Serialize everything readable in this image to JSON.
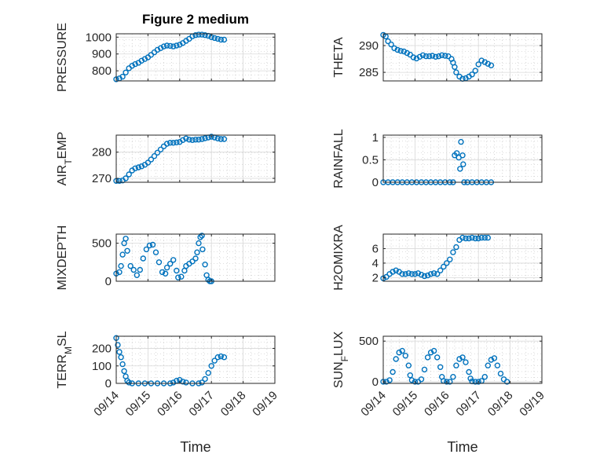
{
  "figure": {
    "title": "Figure 2 medium"
  },
  "colors": {
    "marker": "#0072bd",
    "axis": "#262626"
  },
  "chart_data": [
    {
      "type": "scatter",
      "ylabel": "PRESSURE",
      "title": "Figure 2 medium",
      "ylim": [
        740,
        1020
      ],
      "yticks": [
        800,
        900,
        1000
      ],
      "ytick_labels": [
        "800",
        "900",
        "1000"
      ],
      "xlim": [
        0,
        5
      ],
      "xticks": [
        0,
        1,
        2,
        3,
        4,
        5
      ],
      "xtick_labels": [
        "09/14",
        "09/15",
        "09/16",
        "09/17",
        "09/18",
        "09/19"
      ],
      "xlabel": "",
      "grid": true,
      "minor_grid": true,
      "marker": "circle-open",
      "points": [
        [
          0,
          750
        ],
        [
          0.1,
          755
        ],
        [
          0.2,
          765
        ],
        [
          0.3,
          790
        ],
        [
          0.4,
          815
        ],
        [
          0.5,
          830
        ],
        [
          0.6,
          840
        ],
        [
          0.7,
          848
        ],
        [
          0.8,
          860
        ],
        [
          0.9,
          870
        ],
        [
          1.0,
          880
        ],
        [
          1.1,
          895
        ],
        [
          1.2,
          910
        ],
        [
          1.3,
          925
        ],
        [
          1.4,
          935
        ],
        [
          1.5,
          945
        ],
        [
          1.6,
          950
        ],
        [
          1.7,
          948
        ],
        [
          1.8,
          945
        ],
        [
          1.9,
          950
        ],
        [
          2.0,
          955
        ],
        [
          2.1,
          965
        ],
        [
          2.2,
          978
        ],
        [
          2.3,
          990
        ],
        [
          2.4,
          1005
        ],
        [
          2.5,
          1012
        ],
        [
          2.6,
          1015
        ],
        [
          2.7,
          1015
        ],
        [
          2.8,
          1012
        ],
        [
          2.9,
          1008
        ],
        [
          3.0,
          1000
        ],
        [
          3.1,
          995
        ],
        [
          3.2,
          990
        ],
        [
          3.3,
          985
        ],
        [
          3.4,
          985
        ]
      ]
    },
    {
      "type": "scatter",
      "ylabel": "THETA",
      "ylim": [
        283.4,
        292.2
      ],
      "yticks": [
        285,
        290
      ],
      "ytick_labels": [
        "285",
        "290"
      ],
      "xlim": [
        0,
        5
      ],
      "xticks": [
        0,
        1,
        2,
        3,
        4,
        5
      ],
      "xtick_labels": [
        "09/14",
        "09/15",
        "09/16",
        "09/17",
        "09/18",
        "09/19"
      ],
      "xlabel": "",
      "grid": true,
      "minor_grid": true,
      "marker": "circle-open",
      "points": [
        [
          0,
          292
        ],
        [
          0.08,
          291.7
        ],
        [
          0.15,
          290.8
        ],
        [
          0.25,
          290.2
        ],
        [
          0.35,
          289.5
        ],
        [
          0.45,
          289.2
        ],
        [
          0.55,
          289.0
        ],
        [
          0.65,
          288.9
        ],
        [
          0.75,
          288.6
        ],
        [
          0.85,
          288.3
        ],
        [
          0.95,
          287.8
        ],
        [
          1.05,
          287.6
        ],
        [
          1.15,
          287.9
        ],
        [
          1.25,
          288.2
        ],
        [
          1.35,
          288.0
        ],
        [
          1.45,
          288.0
        ],
        [
          1.55,
          288.1
        ],
        [
          1.65,
          287.9
        ],
        [
          1.75,
          288.0
        ],
        [
          1.85,
          288.2
        ],
        [
          1.95,
          288.1
        ],
        [
          2.05,
          288.0
        ],
        [
          2.15,
          287.5
        ],
        [
          2.2,
          286.8
        ],
        [
          2.25,
          286.0
        ],
        [
          2.3,
          285.0
        ],
        [
          2.4,
          284.2
        ],
        [
          2.5,
          283.8
        ],
        [
          2.6,
          283.9
        ],
        [
          2.7,
          284.2
        ],
        [
          2.8,
          284.6
        ],
        [
          2.9,
          285.3
        ],
        [
          3.0,
          286.5
        ],
        [
          3.1,
          287.2
        ],
        [
          3.2,
          286.9
        ],
        [
          3.3,
          286.6
        ],
        [
          3.4,
          286.3
        ]
      ]
    },
    {
      "type": "scatter",
      "ylabel": "AIR_TEMP",
      "ylim": [
        268.5,
        286.5
      ],
      "yticks": [
        270,
        280
      ],
      "ytick_labels": [
        "270",
        "280"
      ],
      "xlim": [
        0,
        5
      ],
      "xticks": [
        0,
        1,
        2,
        3,
        4,
        5
      ],
      "xtick_labels": [
        "09/14",
        "09/15",
        "09/16",
        "09/17",
        "09/18",
        "09/19"
      ],
      "xlabel": "",
      "grid": true,
      "minor_grid": true,
      "marker": "circle-open",
      "points": [
        [
          0,
          269
        ],
        [
          0.1,
          269
        ],
        [
          0.2,
          269.2
        ],
        [
          0.3,
          270
        ],
        [
          0.4,
          271.5
        ],
        [
          0.5,
          273
        ],
        [
          0.6,
          273.8
        ],
        [
          0.7,
          274.2
        ],
        [
          0.8,
          274.6
        ],
        [
          0.9,
          275.2
        ],
        [
          1.0,
          276
        ],
        [
          1.1,
          277.2
        ],
        [
          1.2,
          278.5
        ],
        [
          1.3,
          279.8
        ],
        [
          1.4,
          281
        ],
        [
          1.5,
          282.2
        ],
        [
          1.6,
          283.2
        ],
        [
          1.7,
          283.6
        ],
        [
          1.8,
          283.6
        ],
        [
          1.9,
          283.7
        ],
        [
          2.0,
          283.9
        ],
        [
          2.1,
          284.6
        ],
        [
          2.2,
          285.2
        ],
        [
          2.3,
          284.8
        ],
        [
          2.4,
          284.6
        ],
        [
          2.5,
          284.8
        ],
        [
          2.6,
          284.8
        ],
        [
          2.7,
          285.0
        ],
        [
          2.8,
          285.3
        ],
        [
          2.9,
          285.6
        ],
        [
          3.0,
          285.9
        ],
        [
          3.1,
          285.6
        ],
        [
          3.2,
          285.2
        ],
        [
          3.3,
          285.0
        ],
        [
          3.4,
          285.0
        ]
      ]
    },
    {
      "type": "scatter",
      "ylabel": "RAINFALL",
      "ylim": [
        0,
        1.05
      ],
      "yticks": [
        0,
        0.5,
        1
      ],
      "ytick_labels": [
        "0",
        "0.5",
        "1"
      ],
      "xlim": [
        0,
        5
      ],
      "xticks": [
        0,
        1,
        2,
        3,
        4,
        5
      ],
      "xtick_labels": [
        "09/14",
        "09/15",
        "09/16",
        "09/17",
        "09/18",
        "09/19"
      ],
      "xlabel": "",
      "grid": true,
      "minor_grid": true,
      "marker": "circle-open",
      "points": [
        [
          0,
          0
        ],
        [
          0.15,
          0
        ],
        [
          0.3,
          0
        ],
        [
          0.45,
          0
        ],
        [
          0.6,
          0
        ],
        [
          0.75,
          0
        ],
        [
          0.9,
          0
        ],
        [
          1.05,
          0
        ],
        [
          1.2,
          0
        ],
        [
          1.35,
          0
        ],
        [
          1.5,
          0
        ],
        [
          1.65,
          0
        ],
        [
          1.8,
          0
        ],
        [
          1.95,
          0
        ],
        [
          2.1,
          0
        ],
        [
          2.2,
          0
        ],
        [
          2.25,
          0.6
        ],
        [
          2.32,
          0.65
        ],
        [
          2.38,
          0.55
        ],
        [
          2.42,
          0.3
        ],
        [
          2.45,
          0.9
        ],
        [
          2.5,
          0.6
        ],
        [
          2.52,
          0.4
        ],
        [
          2.55,
          0
        ],
        [
          2.65,
          0
        ],
        [
          2.8,
          0
        ],
        [
          2.95,
          0
        ],
        [
          3.1,
          0
        ],
        [
          3.25,
          0
        ],
        [
          3.4,
          0
        ]
      ]
    },
    {
      "type": "scatter",
      "ylabel": "MIXDEPTH",
      "ylim": [
        0,
        620
      ],
      "yticks": [
        0,
        500
      ],
      "ytick_labels": [
        "0",
        "500"
      ],
      "xlim": [
        0,
        5
      ],
      "xticks": [
        0,
        1,
        2,
        3,
        4,
        5
      ],
      "xtick_labels": [
        "09/14",
        "09/15",
        "09/16",
        "09/17",
        "09/18",
        "09/19"
      ],
      "xlabel": "",
      "grid": true,
      "minor_grid": true,
      "marker": "circle-open",
      "points": [
        [
          0,
          100
        ],
        [
          0.1,
          120
        ],
        [
          0.15,
          200
        ],
        [
          0.2,
          350
        ],
        [
          0.25,
          500
        ],
        [
          0.3,
          560
        ],
        [
          0.35,
          400
        ],
        [
          0.45,
          200
        ],
        [
          0.55,
          150
        ],
        [
          0.65,
          80
        ],
        [
          0.75,
          150
        ],
        [
          0.85,
          300
        ],
        [
          0.95,
          420
        ],
        [
          1.05,
          470
        ],
        [
          1.15,
          480
        ],
        [
          1.25,
          380
        ],
        [
          1.35,
          250
        ],
        [
          1.45,
          120
        ],
        [
          1.55,
          100
        ],
        [
          1.6,
          180
        ],
        [
          1.7,
          230
        ],
        [
          1.8,
          280
        ],
        [
          1.9,
          140
        ],
        [
          1.95,
          50
        ],
        [
          2.05,
          60
        ],
        [
          2.15,
          140
        ],
        [
          2.2,
          200
        ],
        [
          2.3,
          230
        ],
        [
          2.4,
          260
        ],
        [
          2.5,
          300
        ],
        [
          2.55,
          380
        ],
        [
          2.6,
          500
        ],
        [
          2.65,
          580
        ],
        [
          2.7,
          600
        ],
        [
          2.72,
          420
        ],
        [
          2.8,
          220
        ],
        [
          2.85,
          80
        ],
        [
          2.9,
          20
        ],
        [
          2.95,
          0
        ],
        [
          3.0,
          0
        ]
      ]
    },
    {
      "type": "scatter",
      "ylabel": "H2OMIXRA",
      "ylim": [
        1.5,
        8
      ],
      "yticks": [
        2,
        4,
        6
      ],
      "ytick_labels": [
        "2",
        "4",
        "6"
      ],
      "xlim": [
        0,
        5
      ],
      "xticks": [
        0,
        1,
        2,
        3,
        4,
        5
      ],
      "xtick_labels": [
        "09/14",
        "09/15",
        "09/16",
        "09/17",
        "09/18",
        "09/19"
      ],
      "xlabel": "",
      "grid": true,
      "minor_grid": true,
      "marker": "circle-open",
      "points": [
        [
          0,
          1.9
        ],
        [
          0.1,
          2.1
        ],
        [
          0.2,
          2.5
        ],
        [
          0.3,
          2.8
        ],
        [
          0.4,
          3.0
        ],
        [
          0.5,
          2.8
        ],
        [
          0.6,
          2.5
        ],
        [
          0.7,
          2.5
        ],
        [
          0.8,
          2.6
        ],
        [
          0.9,
          2.5
        ],
        [
          1.0,
          2.5
        ],
        [
          1.1,
          2.6
        ],
        [
          1.2,
          2.4
        ],
        [
          1.3,
          2.2
        ],
        [
          1.4,
          2.3
        ],
        [
          1.5,
          2.5
        ],
        [
          1.6,
          2.6
        ],
        [
          1.7,
          2.5
        ],
        [
          1.8,
          3.0
        ],
        [
          1.9,
          3.5
        ],
        [
          2.0,
          4.0
        ],
        [
          2.1,
          4.5
        ],
        [
          2.2,
          5.5
        ],
        [
          2.3,
          6.2
        ],
        [
          2.4,
          7.2
        ],
        [
          2.5,
          7.5
        ],
        [
          2.6,
          7.4
        ],
        [
          2.7,
          7.4
        ],
        [
          2.8,
          7.5
        ],
        [
          2.9,
          7.4
        ],
        [
          3.0,
          7.4
        ],
        [
          3.1,
          7.5
        ],
        [
          3.2,
          7.5
        ],
        [
          3.3,
          7.5
        ]
      ]
    },
    {
      "type": "scatter",
      "ylabel": "TERR_MSL",
      "ylim": [
        0,
        270
      ],
      "yticks": [
        0,
        100,
        200
      ],
      "ytick_labels": [
        "0",
        "100",
        "200"
      ],
      "xlim": [
        0,
        5
      ],
      "xticks": [
        0,
        1,
        2,
        3,
        4,
        5
      ],
      "xtick_labels": [
        "09/14",
        "09/15",
        "09/16",
        "09/17",
        "09/18",
        "09/19"
      ],
      "xlabel": "Time",
      "grid": true,
      "minor_grid": true,
      "marker": "circle-open",
      "points": [
        [
          0,
          260
        ],
        [
          0.05,
          220
        ],
        [
          0.1,
          180
        ],
        [
          0.15,
          150
        ],
        [
          0.2,
          110
        ],
        [
          0.25,
          70
        ],
        [
          0.3,
          40
        ],
        [
          0.35,
          15
        ],
        [
          0.4,
          5
        ],
        [
          0.5,
          0
        ],
        [
          0.7,
          0
        ],
        [
          0.9,
          0
        ],
        [
          1.1,
          0
        ],
        [
          1.3,
          0
        ],
        [
          1.5,
          0
        ],
        [
          1.7,
          0
        ],
        [
          1.8,
          5
        ],
        [
          1.9,
          15
        ],
        [
          2.0,
          20
        ],
        [
          2.1,
          10
        ],
        [
          2.2,
          5
        ],
        [
          2.4,
          0
        ],
        [
          2.6,
          0
        ],
        [
          2.7,
          5
        ],
        [
          2.8,
          25
        ],
        [
          2.9,
          60
        ],
        [
          3.0,
          100
        ],
        [
          3.1,
          130
        ],
        [
          3.2,
          150
        ],
        [
          3.3,
          155
        ],
        [
          3.4,
          150
        ]
      ]
    },
    {
      "type": "scatter",
      "ylabel": "SUN_FLUX",
      "ylim": [
        -20,
        560
      ],
      "yticks": [
        0,
        500
      ],
      "ytick_labels": [
        "0",
        "500"
      ],
      "xlim": [
        0,
        5
      ],
      "xticks": [
        0,
        1,
        2,
        3,
        4,
        5
      ],
      "xtick_labels": [
        "09/14",
        "09/15",
        "09/16",
        "09/17",
        "09/18",
        "09/19"
      ],
      "xlabel": "Time",
      "grid": true,
      "minor_grid": true,
      "marker": "circle-open",
      "points": [
        [
          0,
          0
        ],
        [
          0.1,
          0
        ],
        [
          0.2,
          20
        ],
        [
          0.3,
          120
        ],
        [
          0.4,
          280
        ],
        [
          0.5,
          360
        ],
        [
          0.6,
          380
        ],
        [
          0.7,
          320
        ],
        [
          0.8,
          200
        ],
        [
          0.85,
          80
        ],
        [
          0.9,
          20
        ],
        [
          1.0,
          0
        ],
        [
          1.1,
          0
        ],
        [
          1.2,
          30
        ],
        [
          1.3,
          150
        ],
        [
          1.4,
          300
        ],
        [
          1.5,
          360
        ],
        [
          1.6,
          380
        ],
        [
          1.7,
          300
        ],
        [
          1.8,
          180
        ],
        [
          1.85,
          60
        ],
        [
          1.9,
          10
        ],
        [
          2.0,
          0
        ],
        [
          2.1,
          0
        ],
        [
          2.2,
          60
        ],
        [
          2.3,
          200
        ],
        [
          2.4,
          280
        ],
        [
          2.5,
          300
        ],
        [
          2.6,
          240
        ],
        [
          2.7,
          120
        ],
        [
          2.75,
          40
        ],
        [
          2.8,
          5
        ],
        [
          2.9,
          0
        ],
        [
          3.0,
          0
        ],
        [
          3.1,
          10
        ],
        [
          3.2,
          60
        ],
        [
          3.3,
          200
        ],
        [
          3.4,
          270
        ],
        [
          3.5,
          290
        ],
        [
          3.6,
          200
        ],
        [
          3.7,
          100
        ],
        [
          3.8,
          30
        ],
        [
          3.9,
          0
        ]
      ]
    }
  ]
}
